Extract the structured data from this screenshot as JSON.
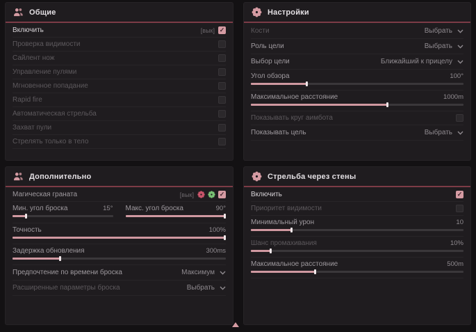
{
  "colors": {
    "accent_pink": "#d59ba3",
    "accent_red": "#c9556a",
    "accent_green": "#79c174",
    "header_line": "#7c3b46"
  },
  "glyphs": {
    "checkmark": "✓"
  },
  "footer": {
    "scroll_indicator": "up-triangle"
  },
  "panels": [
    {
      "title": "Общие",
      "icon": "people-icon",
      "rows": [
        {
          "type": "toggle",
          "label": "Включить",
          "hotkey": "[вык]",
          "checked": true,
          "tone": "bright"
        },
        {
          "type": "toggle",
          "label": "Проверка видимости",
          "checked": false,
          "tone": "dim"
        },
        {
          "type": "toggle",
          "label": "Сайлент нож",
          "checked": false,
          "tone": "dim"
        },
        {
          "type": "toggle",
          "label": "Управление пулями",
          "checked": false,
          "tone": "dim"
        },
        {
          "type": "toggle",
          "label": "Мгновенное попадание",
          "checked": false,
          "tone": "dim"
        },
        {
          "type": "toggle",
          "label": "Rapid fire",
          "checked": false,
          "tone": "dim"
        },
        {
          "type": "toggle",
          "label": "Автоматическая стрельба",
          "checked": false,
          "tone": "dim"
        },
        {
          "type": "toggle",
          "label": "Захват пули",
          "checked": false,
          "tone": "dim"
        },
        {
          "type": "toggle",
          "label": "Стрелять только в тело",
          "checked": false,
          "tone": "dim"
        }
      ]
    },
    {
      "title": "Настройки",
      "icon": "flower-icon",
      "rows": [
        {
          "type": "dropdown",
          "label": "Кости",
          "value": "Выбрать",
          "tone": "dim"
        },
        {
          "type": "dropdown",
          "label": "Роль цели",
          "value": "Выбрать",
          "tone": "medium"
        },
        {
          "type": "dropdown",
          "label": "Выбор цели",
          "value": "Ближайший к прицелу",
          "tone": "medium"
        },
        {
          "type": "slider",
          "label": "Угол обзора",
          "value": "100°",
          "percent": 26,
          "tone": "medium"
        },
        {
          "type": "slider",
          "label": "Максимальное расстояние",
          "value": "1000m",
          "percent": 64,
          "tone": "medium"
        },
        {
          "type": "toggle",
          "label": "Показывать круг аимбота",
          "checked": false,
          "tone": "dim"
        },
        {
          "type": "dropdown",
          "label": "Показывать цель",
          "value": "Выбрать",
          "tone": "medium"
        }
      ]
    },
    {
      "title": "Дополнительно",
      "icon": "people-icon",
      "rows": [
        {
          "type": "toggle",
          "label": "Магическая граната",
          "hotkey": "[вык]",
          "checked": true,
          "tone": "medium",
          "extra_icons": [
            {
              "name": "flower-red-icon",
              "color": "accent_red"
            },
            {
              "name": "flower-green-icon",
              "color": "accent_green"
            }
          ]
        },
        {
          "type": "slider-pair",
          "tone": "medium",
          "items": [
            {
              "label": "Мин. угол броска",
              "value": "15°",
              "percent": 13
            },
            {
              "label": "Макс. угол броска",
              "value": "90°",
              "percent": 100
            }
          ]
        },
        {
          "type": "slider",
          "label": "Точность",
          "value": "100%",
          "percent": 100,
          "tone": "medium"
        },
        {
          "type": "slider",
          "label": "Задержка обновления",
          "value": "300ms",
          "percent": 22,
          "tone": "medium"
        },
        {
          "type": "dropdown",
          "label": "Предпочтение по времени броска",
          "value": "Максимум",
          "tone": "medium"
        },
        {
          "type": "dropdown",
          "label": "Расширенные параметры броска",
          "value": "Выбрать",
          "tone": "dim"
        }
      ]
    },
    {
      "title": "Стрельба через стены",
      "icon": "flower-icon",
      "rows": [
        {
          "type": "toggle",
          "label": "Включить",
          "checked": true,
          "tone": "bright"
        },
        {
          "type": "toggle",
          "label": "Приоритет видимости",
          "checked": false,
          "tone": "dim"
        },
        {
          "type": "slider",
          "label": "Минимальный урон",
          "value": "10",
          "percent": 19,
          "tone": "medium"
        },
        {
          "type": "slider",
          "label": "Шанс промахивания",
          "value": "10%",
          "percent": 9,
          "tone": "dim"
        },
        {
          "type": "slider",
          "label": "Максимальное расстояние",
          "value": "500m",
          "percent": 30,
          "tone": "medium"
        }
      ]
    }
  ]
}
